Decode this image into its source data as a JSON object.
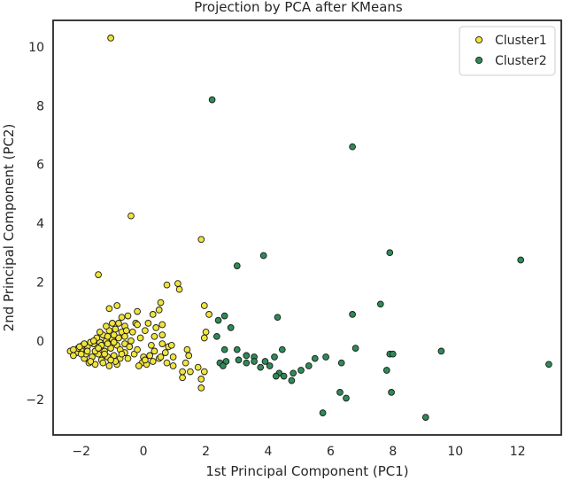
{
  "chart_data": {
    "type": "scatter",
    "title": "Projection by PCA after KMeans",
    "xlabel": "1st Principal Component (PC1)",
    "ylabel": "2nd Principal Component (PC2)",
    "xlim": [
      -2.9,
      13.4
    ],
    "ylim": [
      -3.2,
      10.9
    ],
    "xticks": [
      -2,
      0,
      2,
      4,
      6,
      8,
      10,
      12
    ],
    "yticks": [
      -2,
      0,
      2,
      4,
      6,
      8,
      10
    ],
    "grid": false,
    "legend_position": "top-right",
    "series": [
      {
        "name": "Cluster1",
        "color": "#f1e43a",
        "points": [
          [
            -1.05,
            10.3
          ],
          [
            -0.4,
            4.25
          ],
          [
            1.85,
            3.45
          ],
          [
            -1.45,
            2.25
          ],
          [
            0.75,
            1.9
          ],
          [
            1.1,
            1.95
          ],
          [
            1.15,
            1.75
          ],
          [
            0.55,
            1.3
          ],
          [
            0.5,
            1.05
          ],
          [
            1.95,
            1.2
          ],
          [
            2.1,
            0.9
          ],
          [
            -1.1,
            1.1
          ],
          [
            -0.85,
            1.2
          ],
          [
            -0.2,
            1.0
          ],
          [
            0.3,
            0.9
          ],
          [
            0.6,
            0.55
          ],
          [
            2.0,
            0.3
          ],
          [
            1.95,
            0.1
          ],
          [
            1.4,
            -0.3
          ],
          [
            1.45,
            -0.5
          ],
          [
            1.35,
            -0.75
          ],
          [
            1.5,
            -1.05
          ],
          [
            1.75,
            -0.9
          ],
          [
            1.95,
            -1.05
          ],
          [
            1.85,
            -1.3
          ],
          [
            1.85,
            -1.6
          ],
          [
            1.25,
            -1.25
          ],
          [
            1.25,
            -1.05
          ],
          [
            0.95,
            -0.85
          ],
          [
            0.75,
            -0.75
          ],
          [
            0.95,
            -0.55
          ],
          [
            0.8,
            -0.2
          ],
          [
            0.6,
            -0.1
          ],
          [
            0.9,
            -0.15
          ],
          [
            0.35,
            -0.35
          ],
          [
            0.2,
            -0.5
          ],
          [
            0.0,
            -0.55
          ],
          [
            -0.05,
            -0.75
          ],
          [
            0.1,
            -0.8
          ],
          [
            -0.15,
            -0.85
          ],
          [
            0.5,
            -0.6
          ],
          [
            0.25,
            -0.15
          ],
          [
            -0.1,
            0.1
          ],
          [
            0.05,
            0.35
          ],
          [
            -0.25,
            0.6
          ],
          [
            -0.5,
            0.85
          ],
          [
            -0.7,
            0.8
          ],
          [
            -0.6,
            0.5
          ],
          [
            -0.35,
            0.3
          ],
          [
            -0.4,
            0.0
          ],
          [
            -0.6,
            -0.1
          ],
          [
            -0.6,
            -0.4
          ],
          [
            -0.75,
            -0.6
          ],
          [
            -0.85,
            -0.8
          ],
          [
            -1.1,
            -0.85
          ],
          [
            -1.55,
            -0.8
          ],
          [
            -1.75,
            -0.75
          ],
          [
            -1.9,
            -0.6
          ],
          [
            -2.15,
            -0.4
          ],
          [
            -2.35,
            -0.35
          ],
          [
            -2.25,
            -0.5
          ],
          [
            -2.0,
            -0.3
          ],
          [
            -1.8,
            -0.2
          ],
          [
            -1.6,
            -0.1
          ],
          [
            -1.4,
            -0.05
          ],
          [
            -1.2,
            0.0
          ],
          [
            -1.0,
            0.05
          ],
          [
            -0.8,
            0.1
          ],
          [
            -0.7,
            0.3
          ],
          [
            -0.9,
            0.4
          ],
          [
            -1.1,
            0.35
          ],
          [
            -1.3,
            0.2
          ],
          [
            -1.5,
            0.1
          ],
          [
            -1.7,
            -0.05
          ],
          [
            -1.95,
            -0.15
          ],
          [
            -2.1,
            -0.25
          ],
          [
            -1.85,
            -0.45
          ],
          [
            -1.65,
            -0.55
          ],
          [
            -1.45,
            -0.45
          ],
          [
            -1.25,
            -0.35
          ],
          [
            -1.05,
            -0.25
          ],
          [
            -0.85,
            -0.15
          ],
          [
            -0.75,
            -0.3
          ],
          [
            -0.95,
            -0.5
          ],
          [
            -1.15,
            -0.55
          ],
          [
            -1.35,
            -0.65
          ],
          [
            -1.55,
            -0.35
          ],
          [
            -1.35,
            -0.15
          ],
          [
            -1.15,
            -0.1
          ],
          [
            -0.95,
            0.2
          ],
          [
            -1.2,
            0.5
          ],
          [
            -0.8,
            0.6
          ],
          [
            -0.6,
            0.15
          ],
          [
            -0.45,
            -0.2
          ],
          [
            -0.3,
            -0.45
          ],
          [
            -0.5,
            -0.6
          ],
          [
            -0.9,
            -0.7
          ],
          [
            -1.3,
            -0.75
          ],
          [
            -1.7,
            -0.7
          ],
          [
            -2.0,
            -0.45
          ],
          [
            -2.25,
            -0.3
          ],
          [
            -1.6,
            0.0
          ],
          [
            -1.4,
            0.3
          ],
          [
            -1.0,
            0.6
          ],
          [
            -0.55,
            0.35
          ],
          [
            -0.2,
            0.55
          ],
          [
            0.15,
            0.6
          ],
          [
            0.4,
            0.45
          ],
          [
            0.35,
            0.15
          ],
          [
            0.6,
            0.2
          ],
          [
            0.7,
            -0.4
          ],
          [
            0.55,
            -0.55
          ],
          [
            0.3,
            -0.7
          ],
          [
            0.05,
            -0.65
          ],
          [
            -0.2,
            -0.3
          ],
          [
            -1.25,
            -0.45
          ],
          [
            -1.05,
            -0.65
          ],
          [
            -1.45,
            -0.25
          ],
          [
            -1.8,
            -0.35
          ],
          [
            -2.05,
            -0.2
          ],
          [
            -1.15,
            0.15
          ],
          [
            -0.95,
            -0.05
          ],
          [
            -0.7,
            -0.45
          ],
          [
            -1.9,
            -0.1
          ]
        ]
      },
      {
        "name": "Cluster2",
        "color": "#2e8b57",
        "points": [
          [
            2.2,
            8.2
          ],
          [
            6.7,
            6.6
          ],
          [
            12.1,
            2.75
          ],
          [
            7.9,
            3.0
          ],
          [
            3.85,
            2.9
          ],
          [
            3.0,
            2.55
          ],
          [
            7.6,
            1.25
          ],
          [
            6.7,
            0.9
          ],
          [
            4.3,
            0.8
          ],
          [
            2.6,
            0.85
          ],
          [
            2.4,
            0.7
          ],
          [
            2.8,
            0.45
          ],
          [
            2.35,
            0.15
          ],
          [
            2.6,
            -0.3
          ],
          [
            3.0,
            -0.3
          ],
          [
            3.3,
            -0.5
          ],
          [
            3.55,
            -0.55
          ],
          [
            3.3,
            -0.75
          ],
          [
            3.05,
            -0.65
          ],
          [
            2.65,
            -0.7
          ],
          [
            2.45,
            -0.75
          ],
          [
            2.55,
            -0.85
          ],
          [
            3.9,
            -0.7
          ],
          [
            3.75,
            -0.9
          ],
          [
            4.2,
            -0.55
          ],
          [
            4.45,
            -0.3
          ],
          [
            4.35,
            -1.1
          ],
          [
            4.5,
            -1.2
          ],
          [
            4.8,
            -1.1
          ],
          [
            4.75,
            -1.35
          ],
          [
            5.05,
            -1.0
          ],
          [
            5.3,
            -0.85
          ],
          [
            5.5,
            -0.6
          ],
          [
            5.85,
            -0.55
          ],
          [
            6.35,
            -0.75
          ],
          [
            6.8,
            -0.25
          ],
          [
            7.9,
            -0.45
          ],
          [
            7.8,
            -1.0
          ],
          [
            8.0,
            -0.45
          ],
          [
            9.55,
            -0.35
          ],
          [
            13.0,
            -0.8
          ],
          [
            6.3,
            -1.75
          ],
          [
            6.5,
            -1.95
          ],
          [
            7.95,
            -1.75
          ],
          [
            5.75,
            -2.45
          ],
          [
            9.05,
            -2.6
          ],
          [
            4.25,
            -1.2
          ],
          [
            3.55,
            -0.7
          ],
          [
            4.05,
            -0.85
          ]
        ]
      }
    ]
  }
}
